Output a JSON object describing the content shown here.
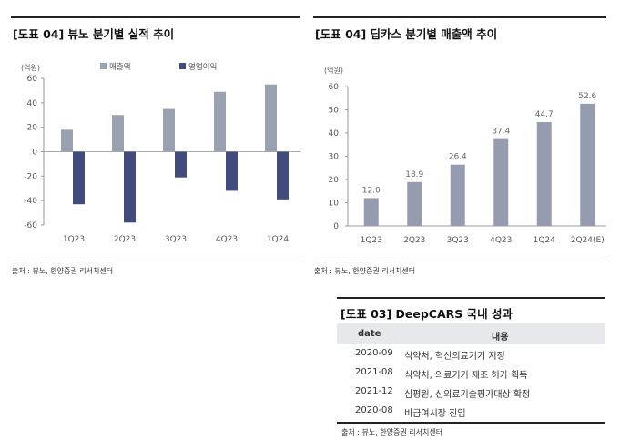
{
  "left_panel": {
    "title": "[도표 04] 뷰노 분기별 실적 추이",
    "unit": "(억원)",
    "source": "출처 : 뷰노, 한양증권 리서치센터"
  },
  "right_panel": {
    "title": "[도표 04] 딥카스 분기별 매출액 추이",
    "unit": "(억원)",
    "source": "출처 : 뷰노, 한양증권 리서치센터"
  },
  "table": {
    "title": "[도표 03] DeepCARS 국내 성과",
    "headers": [
      "date",
      "내용"
    ],
    "rows": [
      {
        "date": "2020-09",
        "content": "식약처, 혁신의료기기 지정"
      },
      {
        "date": "2021-08",
        "content": "식약처, 의료기기 제조 허가 획득"
      },
      {
        "date": "2021-12",
        "content": "심평원, 신의료기술평가대상 확정"
      },
      {
        "date": "2020-08",
        "content": "비급여시장 진입"
      }
    ],
    "source": "출처 : 뷰노, 한양증권 리서치센터"
  },
  "colors": {
    "revenue": "#9aa2b1",
    "op_income": "#414b7c",
    "bar": "#959cb0"
  },
  "chart_data": [
    {
      "type": "bar",
      "categories": [
        "1Q23",
        "2Q23",
        "3Q23",
        "4Q23",
        "1Q24"
      ],
      "series": [
        {
          "name": "매출액",
          "values": [
            18,
            30,
            35,
            49,
            55
          ]
        },
        {
          "name": "영업이익",
          "values": [
            -43,
            -58,
            -21,
            -32,
            -39
          ]
        }
      ],
      "yticks": [
        60,
        40,
        20,
        0,
        -20,
        -40,
        -60
      ],
      "ylim": [
        -60,
        60
      ],
      "legend": "top",
      "grid": false
    },
    {
      "type": "bar",
      "categories": [
        "1Q23",
        "2Q23",
        "3Q23",
        "4Q23",
        "1Q24",
        "2Q24(E)"
      ],
      "values": [
        12.0,
        18.9,
        26.4,
        37.4,
        44.7,
        52.6
      ],
      "data_labels": [
        "12.0",
        "18.9",
        "26.4",
        "37.4",
        "44.7",
        "52.6"
      ],
      "yticks": [
        60,
        50,
        40,
        30,
        20,
        10,
        0
      ],
      "ylim": [
        0,
        60
      ],
      "grid": false
    }
  ]
}
